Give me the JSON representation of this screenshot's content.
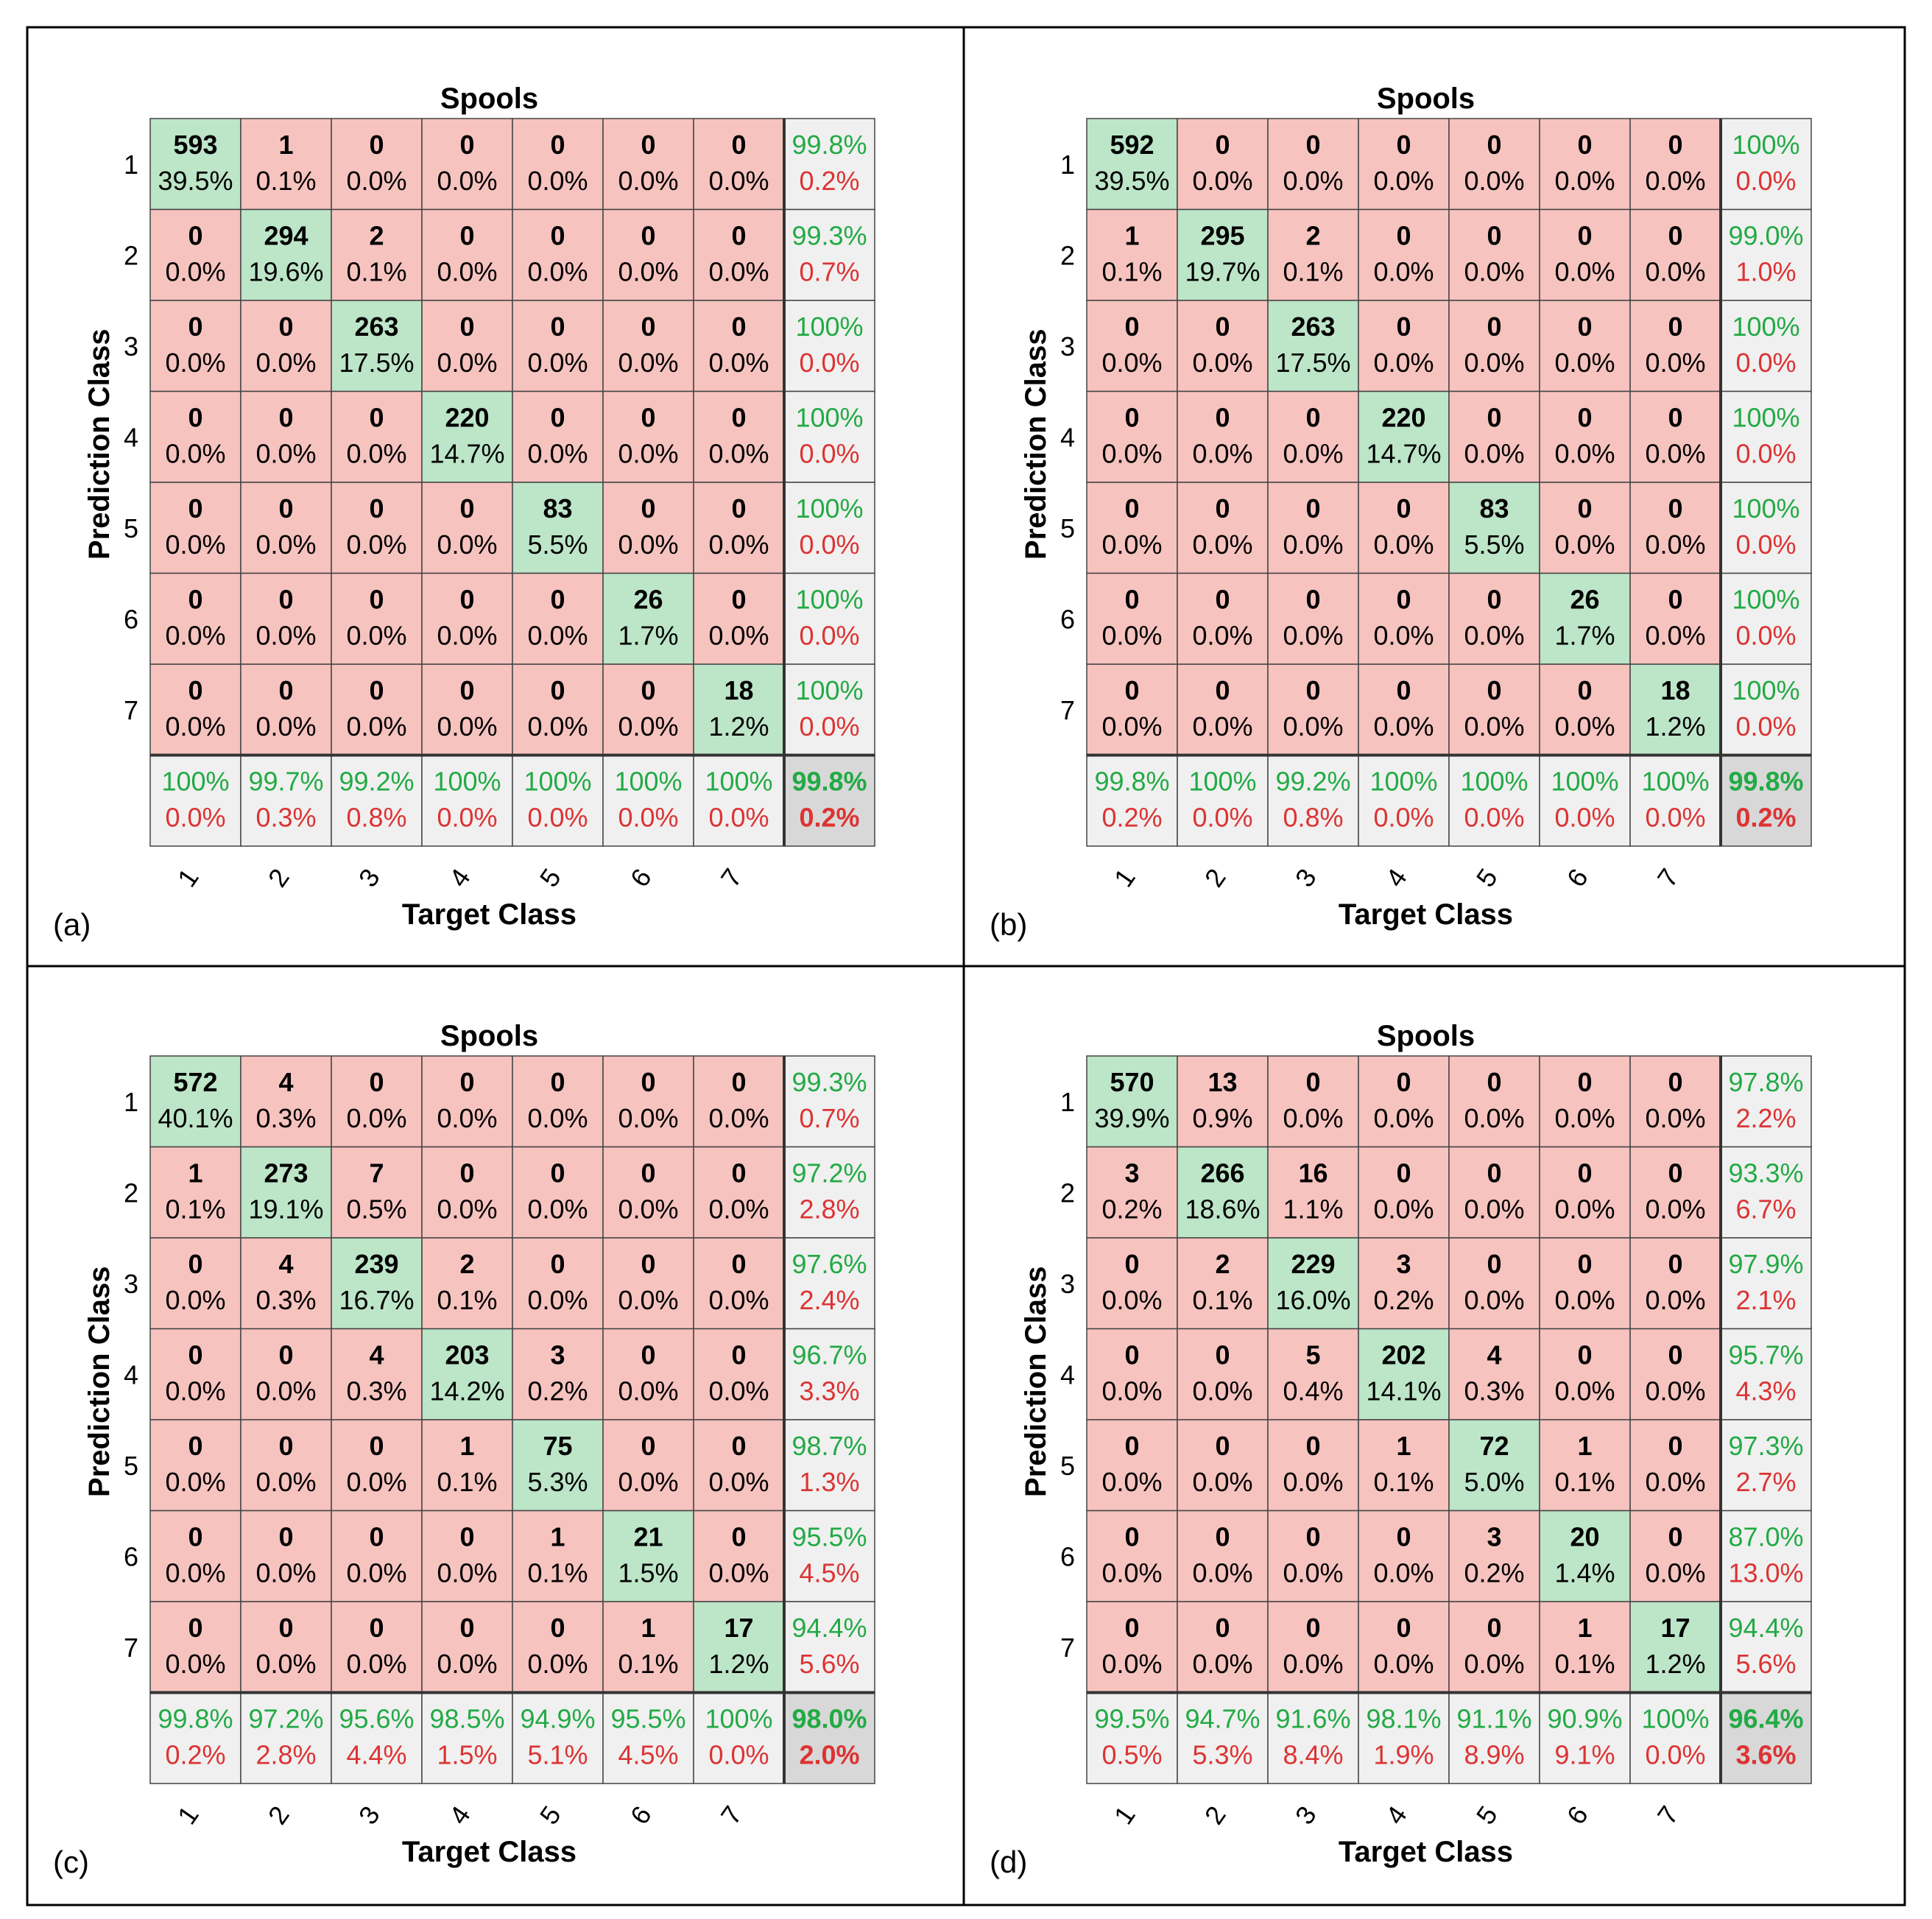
{
  "colors": {
    "diag": "#bde5c8",
    "offdiag": "#f6c3bf",
    "summary": "#f0f0f0",
    "overall": "#d8d8d8",
    "green": "#22aa44",
    "red": "#dd3333",
    "border": "#000000"
  },
  "chart_data": [
    {
      "type": "heatmap",
      "panel_label": "(a)",
      "title": "Spools",
      "xlabel": "Target Class",
      "ylabel": "Prediction Class",
      "classes": [
        "1",
        "2",
        "3",
        "4",
        "5",
        "6",
        "7"
      ],
      "counts": [
        [
          "593",
          "1",
          "0",
          "0",
          "0",
          "0",
          "0"
        ],
        [
          "0",
          "294",
          "2",
          "0",
          "0",
          "0",
          "0"
        ],
        [
          "0",
          "0",
          "263",
          "0",
          "0",
          "0",
          "0"
        ],
        [
          "0",
          "0",
          "0",
          "220",
          "0",
          "0",
          "0"
        ],
        [
          "0",
          "0",
          "0",
          "0",
          "83",
          "0",
          "0"
        ],
        [
          "0",
          "0",
          "0",
          "0",
          "0",
          "26",
          "0"
        ],
        [
          "0",
          "0",
          "0",
          "0",
          "0",
          "0",
          "18"
        ]
      ],
      "percents": [
        [
          "39.5%",
          "0.1%",
          "0.0%",
          "0.0%",
          "0.0%",
          "0.0%",
          "0.0%"
        ],
        [
          "0.0%",
          "19.6%",
          "0.1%",
          "0.0%",
          "0.0%",
          "0.0%",
          "0.0%"
        ],
        [
          "0.0%",
          "0.0%",
          "17.5%",
          "0.0%",
          "0.0%",
          "0.0%",
          "0.0%"
        ],
        [
          "0.0%",
          "0.0%",
          "0.0%",
          "14.7%",
          "0.0%",
          "0.0%",
          "0.0%"
        ],
        [
          "0.0%",
          "0.0%",
          "0.0%",
          "0.0%",
          "5.5%",
          "0.0%",
          "0.0%"
        ],
        [
          "0.0%",
          "0.0%",
          "0.0%",
          "0.0%",
          "0.0%",
          "1.7%",
          "0.0%"
        ],
        [
          "0.0%",
          "0.0%",
          "0.0%",
          "0.0%",
          "0.0%",
          "0.0%",
          "1.2%"
        ]
      ],
      "row_summary": [
        [
          "99.8%",
          "0.2%"
        ],
        [
          "99.3%",
          "0.7%"
        ],
        [
          "100%",
          "0.0%"
        ],
        [
          "100%",
          "0.0%"
        ],
        [
          "100%",
          "0.0%"
        ],
        [
          "100%",
          "0.0%"
        ],
        [
          "100%",
          "0.0%"
        ]
      ],
      "col_summary": [
        [
          "100%",
          "0.0%"
        ],
        [
          "99.7%",
          "0.3%"
        ],
        [
          "99.2%",
          "0.8%"
        ],
        [
          "100%",
          "0.0%"
        ],
        [
          "100%",
          "0.0%"
        ],
        [
          "100%",
          "0.0%"
        ],
        [
          "100%",
          "0.0%"
        ]
      ],
      "overall": [
        "99.8%",
        "0.2%"
      ]
    },
    {
      "type": "heatmap",
      "panel_label": "(b)",
      "title": "Spools",
      "xlabel": "Target Class",
      "ylabel": "Prediction Class",
      "classes": [
        "1",
        "2",
        "3",
        "4",
        "5",
        "6",
        "7"
      ],
      "counts": [
        [
          "592",
          "0",
          "0",
          "0",
          "0",
          "0",
          "0"
        ],
        [
          "1",
          "295",
          "2",
          "0",
          "0",
          "0",
          "0"
        ],
        [
          "0",
          "0",
          "263",
          "0",
          "0",
          "0",
          "0"
        ],
        [
          "0",
          "0",
          "0",
          "220",
          "0",
          "0",
          "0"
        ],
        [
          "0",
          "0",
          "0",
          "0",
          "83",
          "0",
          "0"
        ],
        [
          "0",
          "0",
          "0",
          "0",
          "0",
          "26",
          "0"
        ],
        [
          "0",
          "0",
          "0",
          "0",
          "0",
          "0",
          "18"
        ]
      ],
      "percents": [
        [
          "39.5%",
          "0.0%",
          "0.0%",
          "0.0%",
          "0.0%",
          "0.0%",
          "0.0%"
        ],
        [
          "0.1%",
          "19.7%",
          "0.1%",
          "0.0%",
          "0.0%",
          "0.0%",
          "0.0%"
        ],
        [
          "0.0%",
          "0.0%",
          "17.5%",
          "0.0%",
          "0.0%",
          "0.0%",
          "0.0%"
        ],
        [
          "0.0%",
          "0.0%",
          "0.0%",
          "14.7%",
          "0.0%",
          "0.0%",
          "0.0%"
        ],
        [
          "0.0%",
          "0.0%",
          "0.0%",
          "0.0%",
          "5.5%",
          "0.0%",
          "0.0%"
        ],
        [
          "0.0%",
          "0.0%",
          "0.0%",
          "0.0%",
          "0.0%",
          "1.7%",
          "0.0%"
        ],
        [
          "0.0%",
          "0.0%",
          "0.0%",
          "0.0%",
          "0.0%",
          "0.0%",
          "1.2%"
        ]
      ],
      "row_summary": [
        [
          "100%",
          "0.0%"
        ],
        [
          "99.0%",
          "1.0%"
        ],
        [
          "100%",
          "0.0%"
        ],
        [
          "100%",
          "0.0%"
        ],
        [
          "100%",
          "0.0%"
        ],
        [
          "100%",
          "0.0%"
        ],
        [
          "100%",
          "0.0%"
        ]
      ],
      "col_summary": [
        [
          "99.8%",
          "0.2%"
        ],
        [
          "100%",
          "0.0%"
        ],
        [
          "99.2%",
          "0.8%"
        ],
        [
          "100%",
          "0.0%"
        ],
        [
          "100%",
          "0.0%"
        ],
        [
          "100%",
          "0.0%"
        ],
        [
          "100%",
          "0.0%"
        ]
      ],
      "overall": [
        "99.8%",
        "0.2%"
      ]
    },
    {
      "type": "heatmap",
      "panel_label": "(c)",
      "title": "Spools",
      "xlabel": "Target Class",
      "ylabel": "Prediction Class",
      "classes": [
        "1",
        "2",
        "3",
        "4",
        "5",
        "6",
        "7"
      ],
      "counts": [
        [
          "572",
          "4",
          "0",
          "0",
          "0",
          "0",
          "0"
        ],
        [
          "1",
          "273",
          "7",
          "0",
          "0",
          "0",
          "0"
        ],
        [
          "0",
          "4",
          "239",
          "2",
          "0",
          "0",
          "0"
        ],
        [
          "0",
          "0",
          "4",
          "203",
          "3",
          "0",
          "0"
        ],
        [
          "0",
          "0",
          "0",
          "1",
          "75",
          "0",
          "0"
        ],
        [
          "0",
          "0",
          "0",
          "0",
          "1",
          "21",
          "0"
        ],
        [
          "0",
          "0",
          "0",
          "0",
          "0",
          "1",
          "17"
        ]
      ],
      "percents": [
        [
          "40.1%",
          "0.3%",
          "0.0%",
          "0.0%",
          "0.0%",
          "0.0%",
          "0.0%"
        ],
        [
          "0.1%",
          "19.1%",
          "0.5%",
          "0.0%",
          "0.0%",
          "0.0%",
          "0.0%"
        ],
        [
          "0.0%",
          "0.3%",
          "16.7%",
          "0.1%",
          "0.0%",
          "0.0%",
          "0.0%"
        ],
        [
          "0.0%",
          "0.0%",
          "0.3%",
          "14.2%",
          "0.2%",
          "0.0%",
          "0.0%"
        ],
        [
          "0.0%",
          "0.0%",
          "0.0%",
          "0.1%",
          "5.3%",
          "0.0%",
          "0.0%"
        ],
        [
          "0.0%",
          "0.0%",
          "0.0%",
          "0.0%",
          "0.1%",
          "1.5%",
          "0.0%"
        ],
        [
          "0.0%",
          "0.0%",
          "0.0%",
          "0.0%",
          "0.0%",
          "0.1%",
          "1.2%"
        ]
      ],
      "row_summary": [
        [
          "99.3%",
          "0.7%"
        ],
        [
          "97.2%",
          "2.8%"
        ],
        [
          "97.6%",
          "2.4%"
        ],
        [
          "96.7%",
          "3.3%"
        ],
        [
          "98.7%",
          "1.3%"
        ],
        [
          "95.5%",
          "4.5%"
        ],
        [
          "94.4%",
          "5.6%"
        ]
      ],
      "col_summary": [
        [
          "99.8%",
          "0.2%"
        ],
        [
          "97.2%",
          "2.8%"
        ],
        [
          "95.6%",
          "4.4%"
        ],
        [
          "98.5%",
          "1.5%"
        ],
        [
          "94.9%",
          "5.1%"
        ],
        [
          "95.5%",
          "4.5%"
        ],
        [
          "100%",
          "0.0%"
        ]
      ],
      "overall": [
        "98.0%",
        "2.0%"
      ]
    },
    {
      "type": "heatmap",
      "panel_label": "(d)",
      "title": "Spools",
      "xlabel": "Target Class",
      "ylabel": "Prediction Class",
      "classes": [
        "1",
        "2",
        "3",
        "4",
        "5",
        "6",
        "7"
      ],
      "counts": [
        [
          "570",
          "13",
          "0",
          "0",
          "0",
          "0",
          "0"
        ],
        [
          "3",
          "266",
          "16",
          "0",
          "0",
          "0",
          "0"
        ],
        [
          "0",
          "2",
          "229",
          "3",
          "0",
          "0",
          "0"
        ],
        [
          "0",
          "0",
          "5",
          "202",
          "4",
          "0",
          "0"
        ],
        [
          "0",
          "0",
          "0",
          "1",
          "72",
          "1",
          "0"
        ],
        [
          "0",
          "0",
          "0",
          "0",
          "3",
          "20",
          "0"
        ],
        [
          "0",
          "0",
          "0",
          "0",
          "0",
          "1",
          "17"
        ]
      ],
      "percents": [
        [
          "39.9%",
          "0.9%",
          "0.0%",
          "0.0%",
          "0.0%",
          "0.0%",
          "0.0%"
        ],
        [
          "0.2%",
          "18.6%",
          "1.1%",
          "0.0%",
          "0.0%",
          "0.0%",
          "0.0%"
        ],
        [
          "0.0%",
          "0.1%",
          "16.0%",
          "0.2%",
          "0.0%",
          "0.0%",
          "0.0%"
        ],
        [
          "0.0%",
          "0.0%",
          "0.4%",
          "14.1%",
          "0.3%",
          "0.0%",
          "0.0%"
        ],
        [
          "0.0%",
          "0.0%",
          "0.0%",
          "0.1%",
          "5.0%",
          "0.1%",
          "0.0%"
        ],
        [
          "0.0%",
          "0.0%",
          "0.0%",
          "0.0%",
          "0.2%",
          "1.4%",
          "0.0%"
        ],
        [
          "0.0%",
          "0.0%",
          "0.0%",
          "0.0%",
          "0.0%",
          "0.1%",
          "1.2%"
        ]
      ],
      "row_summary": [
        [
          "97.8%",
          "2.2%"
        ],
        [
          "93.3%",
          "6.7%"
        ],
        [
          "97.9%",
          "2.1%"
        ],
        [
          "95.7%",
          "4.3%"
        ],
        [
          "97.3%",
          "2.7%"
        ],
        [
          "87.0%",
          "13.0%"
        ],
        [
          "94.4%",
          "5.6%"
        ]
      ],
      "col_summary": [
        [
          "99.5%",
          "0.5%"
        ],
        [
          "94.7%",
          "5.3%"
        ],
        [
          "91.6%",
          "8.4%"
        ],
        [
          "98.1%",
          "1.9%"
        ],
        [
          "91.1%",
          "8.9%"
        ],
        [
          "90.9%",
          "9.1%"
        ],
        [
          "100%",
          "0.0%"
        ]
      ],
      "overall": [
        "96.4%",
        "3.6%"
      ]
    }
  ]
}
